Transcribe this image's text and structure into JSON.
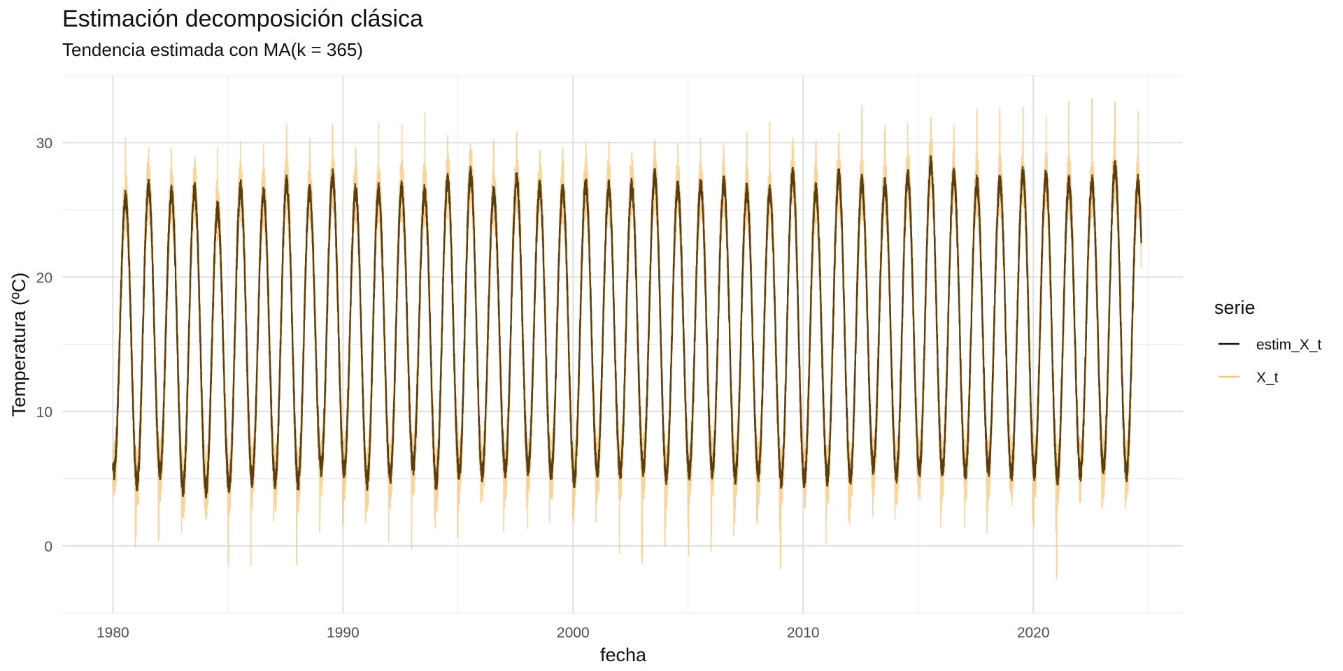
{
  "chart_data": {
    "type": "line",
    "title": "Estimación decomposición clásica",
    "subtitle": "Tendencia estimada con MA(k = 365)",
    "xlabel": "fecha",
    "ylabel": "Temperatura (ºC)",
    "xlim": [
      1977.8,
      2026.5
    ],
    "ylim": [
      -5.0,
      35.0
    ],
    "x_ticks": [
      1980,
      1990,
      2000,
      2010,
      2020
    ],
    "y_ticks": [
      0,
      10,
      20,
      30
    ],
    "grid": true,
    "legend": {
      "title": "serie",
      "position": "right"
    },
    "series": [
      {
        "name": "estim_X_t",
        "color": "#5a3d10",
        "description_values": "smooth seasonal estimate; yearly peaks in data units",
        "years": [
          1980,
          1981,
          1982,
          1983,
          1984,
          1985,
          1986,
          1987,
          1988,
          1989,
          1990,
          1991,
          1992,
          1993,
          1994,
          1995,
          1996,
          1997,
          1998,
          1999,
          2000,
          2001,
          2002,
          2003,
          2004,
          2005,
          2006,
          2007,
          2008,
          2009,
          2010,
          2011,
          2012,
          2013,
          2014,
          2015,
          2016,
          2017,
          2018,
          2019,
          2020,
          2021,
          2022,
          2023,
          2024
        ],
        "peaks": [
          25.8,
          26.7,
          26.2,
          26.5,
          25.1,
          26.6,
          26.1,
          27.0,
          26.3,
          27.4,
          26.4,
          26.4,
          26.5,
          26.3,
          27.1,
          27.6,
          26.2,
          27.3,
          26.6,
          26.5,
          26.8,
          26.6,
          26.7,
          27.5,
          26.6,
          26.8,
          27.0,
          26.4,
          26.3,
          27.6,
          26.4,
          27.6,
          27.0,
          26.8,
          27.5,
          28.4,
          27.5,
          27.0,
          27.1,
          27.7,
          27.4,
          27.0,
          27.0,
          28.2,
          27.0
        ],
        "troughs": [
          5.5,
          4.7,
          5.5,
          4.3,
          4.2,
          4.4,
          5.0,
          4.9,
          4.7,
          5.8,
          5.6,
          4.8,
          5.1,
          5.9,
          4.7,
          5.4,
          5.4,
          5.7,
          5.8,
          5.4,
          4.9,
          5.6,
          5.5,
          5.8,
          5.2,
          5.5,
          5.6,
          5.2,
          5.4,
          4.9,
          4.9,
          5.1,
          5.0,
          5.9,
          5.3,
          5.6,
          5.6,
          5.4,
          5.7,
          5.4,
          5.5,
          5.1,
          5.4,
          5.8,
          5.4
        ]
      },
      {
        "name": "X_t",
        "color": "#f5c77e",
        "description_values": "daily observed temperature; yearly extremes in data units",
        "years": [
          1980,
          1981,
          1982,
          1983,
          1984,
          1985,
          1986,
          1987,
          1988,
          1989,
          1990,
          1991,
          1992,
          1993,
          1994,
          1995,
          1996,
          1997,
          1998,
          1999,
          2000,
          2001,
          2002,
          2003,
          2004,
          2005,
          2006,
          2007,
          2008,
          2009,
          2010,
          2011,
          2012,
          2013,
          2014,
          2015,
          2016,
          2017,
          2018,
          2019,
          2020,
          2021,
          2022,
          2023,
          2024
        ],
        "max": [
          30.4,
          30.2,
          29.8,
          29.0,
          30.2,
          30.9,
          30.6,
          31.5,
          30.5,
          31.8,
          30.0,
          32.1,
          31.6,
          32.4,
          30.8,
          32.3,
          30.5,
          31.2,
          29.5,
          29.8,
          30.5,
          30.2,
          29.7,
          30.3,
          30.6,
          31.0,
          30.0,
          30.9,
          31.6,
          30.5,
          30.3,
          31.4,
          32.9,
          31.5,
          31.8,
          32.1,
          31.6,
          32.7,
          32.6,
          33.0,
          32.2,
          33.4,
          33.4,
          33.4,
          32.6
        ],
        "min": [
          -0.3,
          0.3,
          0.3,
          -1.5,
          1.6,
          -2.1,
          0.9,
          -1.7,
          0.6,
          1.4,
          1.1,
          0.0,
          -0.4,
          1.0,
          0.3,
          2.2,
          -0.1,
          2.0,
          0.9,
          1.1,
          0.7,
          1.8,
          -1.5,
          -1.0,
          1.3,
          -1.3,
          0.3,
          1.1,
          0.7,
          -1.9,
          -0.8,
          1.7,
          1.6,
          1.5,
          1.4,
          0.6,
          1.3,
          0.4,
          1.4,
          1.6,
          0.4,
          -3.4,
          2.2,
          2.6,
          3.0
        ],
        "end_date_value": 2024.7
      }
    ]
  }
}
